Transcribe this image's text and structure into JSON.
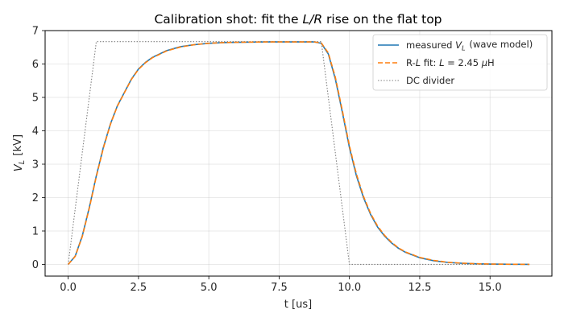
{
  "chart_data": {
    "type": "line",
    "title": "Calibration shot: fit the L/R rise on the flat top",
    "xlabel": "t [us]",
    "ylabel": "V_L [kV]",
    "xlim": [
      -0.82,
      17.2
    ],
    "ylim": [
      -0.35,
      7.0
    ],
    "xticks": [
      0.0,
      2.5,
      5.0,
      7.5,
      10.0,
      12.5,
      15.0
    ],
    "xtick_labels": [
      "0.0",
      "2.5",
      "5.0",
      "7.5",
      "10.0",
      "12.5",
      "15.0"
    ],
    "yticks": [
      0,
      1,
      2,
      3,
      4,
      5,
      6,
      7
    ],
    "ytick_labels": [
      "0",
      "1",
      "2",
      "3",
      "4",
      "5",
      "6",
      "7"
    ],
    "grid": true,
    "legend_position": "top-right",
    "series": [
      {
        "name": "measured V_L (wave model)",
        "color": "#1f77b4",
        "style": "solid",
        "x": [
          0.0,
          0.25,
          0.5,
          0.75,
          1.0,
          1.25,
          1.5,
          1.75,
          2.0,
          2.25,
          2.5,
          2.75,
          3.0,
          3.5,
          4.0,
          4.5,
          5.0,
          5.5,
          6.0,
          7.0,
          8.0,
          8.75,
          9.0,
          9.25,
          9.5,
          9.75,
          10.0,
          10.25,
          10.5,
          10.75,
          11.0,
          11.25,
          11.5,
          11.75,
          12.0,
          12.5,
          13.0,
          13.5,
          14.0,
          14.5,
          15.0,
          15.5,
          16.0,
          16.4
        ],
        "y": [
          0.0,
          0.25,
          0.85,
          1.7,
          2.65,
          3.5,
          4.2,
          4.75,
          5.15,
          5.55,
          5.85,
          6.05,
          6.2,
          6.4,
          6.52,
          6.58,
          6.62,
          6.64,
          6.65,
          6.66,
          6.66,
          6.66,
          6.62,
          6.3,
          5.55,
          4.55,
          3.5,
          2.65,
          2.0,
          1.5,
          1.12,
          0.85,
          0.64,
          0.48,
          0.36,
          0.2,
          0.11,
          0.06,
          0.035,
          0.02,
          0.01,
          0.006,
          0.003,
          0.002
        ]
      },
      {
        "name": "R-L fit: L = 2.45 μH",
        "color": "#ff7f0e",
        "style": "dashed",
        "x": [
          0.0,
          0.25,
          0.5,
          0.75,
          1.0,
          1.25,
          1.5,
          1.75,
          2.0,
          2.25,
          2.5,
          2.75,
          3.0,
          3.5,
          4.0,
          4.5,
          5.0,
          5.5,
          6.0,
          7.0,
          8.0,
          8.75,
          9.0,
          9.25,
          9.5,
          9.75,
          10.0,
          10.25,
          10.5,
          10.75,
          11.0,
          11.25,
          11.5,
          11.75,
          12.0,
          12.5,
          13.0,
          13.5,
          14.0,
          14.5,
          15.0,
          15.5,
          16.0,
          16.4
        ],
        "y": [
          0.0,
          0.24,
          0.83,
          1.68,
          2.63,
          3.48,
          4.19,
          4.74,
          5.14,
          5.54,
          5.84,
          6.04,
          6.19,
          6.39,
          6.51,
          6.58,
          6.62,
          6.64,
          6.65,
          6.66,
          6.66,
          6.66,
          6.63,
          6.33,
          5.6,
          4.6,
          3.55,
          2.7,
          2.04,
          1.53,
          1.15,
          0.87,
          0.66,
          0.49,
          0.37,
          0.21,
          0.12,
          0.065,
          0.037,
          0.021,
          0.011,
          0.006,
          0.003,
          0.002
        ]
      },
      {
        "name": "DC divider",
        "color": "#808080",
        "style": "dotted",
        "x": [
          0.0,
          1.0,
          9.0,
          10.0,
          16.4
        ],
        "y": [
          0.0,
          6.67,
          6.67,
          0.0,
          0.0
        ]
      }
    ]
  }
}
